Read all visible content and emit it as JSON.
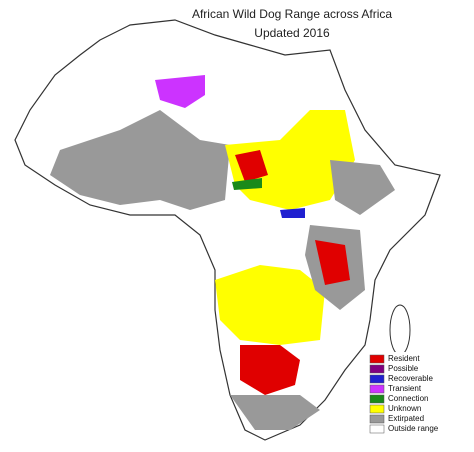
{
  "title": "African Wild Dog Range across Africa",
  "subtitle": "Updated 2016",
  "legend": [
    {
      "label": "Resident",
      "color": "#e00000"
    },
    {
      "label": "Possible",
      "color": "#800080"
    },
    {
      "label": "Recoverable",
      "color": "#2020d0"
    },
    {
      "label": "Transient",
      "color": "#cc33ff"
    },
    {
      "label": "Connection",
      "color": "#1a8a1a"
    },
    {
      "label": "Unknown",
      "color": "#ffff00"
    },
    {
      "label": "Extirpated",
      "color": "#999999"
    },
    {
      "label": "Outside range",
      "color": "#ffffff"
    }
  ]
}
